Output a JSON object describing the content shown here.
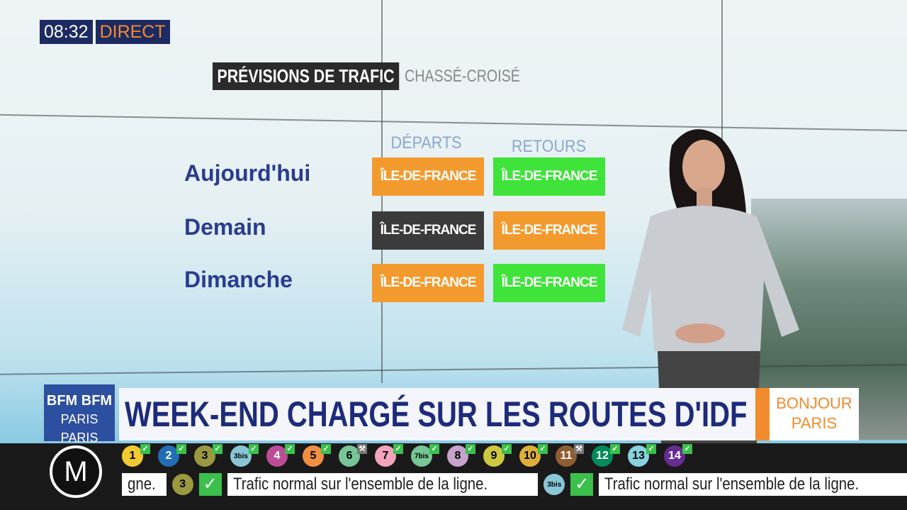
{
  "overlay": {
    "time": "08:32",
    "live": "DIRECT"
  },
  "board": {
    "title": "PRÉVISIONS DE TRAFIC",
    "subtitle": "CHASSÉ-CROISÉ",
    "columns": [
      "DÉPARTS",
      "RETOURS"
    ],
    "rows": [
      {
        "day": "Aujourd'hui",
        "departs": {
          "label": "ÎLE-DE-FRANCE",
          "color": "#f39a2e"
        },
        "retours": {
          "label": "ÎLE-DE-FRANCE",
          "color": "#3fe33a"
        }
      },
      {
        "day": "Demain",
        "departs": {
          "label": "ÎLE-DE-FRANCE",
          "color": "#3b3b3b"
        },
        "retours": {
          "label": "ÎLE-DE-FRANCE",
          "color": "#f39a2e"
        }
      },
      {
        "day": "Dimanche",
        "departs": {
          "label": "ÎLE-DE-FRANCE",
          "color": "#f39a2e"
        },
        "retours": {
          "label": "ÎLE-DE-FRANCE",
          "color": "#3fe33a"
        }
      }
    ]
  },
  "banner": {
    "channel_logo": "BFM PARIS",
    "headline": "WEEK-END CHARGÉ SUR LES ROUTES D'IDF",
    "show_logo": "BONJOUR PARIS"
  },
  "metro": {
    "logo": "M",
    "lines": [
      {
        "n": "1",
        "color": "#f2c931",
        "status": "ok"
      },
      {
        "n": "2",
        "color": "#216eb4",
        "status": "ok"
      },
      {
        "n": "3",
        "color": "#9a9940",
        "status": "ok"
      },
      {
        "n": "3bis",
        "color": "#89c7d6",
        "status": "ok"
      },
      {
        "n": "4",
        "color": "#bb4d98",
        "status": "ok"
      },
      {
        "n": "5",
        "color": "#f28e42",
        "status": "ok"
      },
      {
        "n": "6",
        "color": "#77c695",
        "status": "works"
      },
      {
        "n": "7",
        "color": "#f3a4ba",
        "status": "ok"
      },
      {
        "n": "7bis",
        "color": "#77c695",
        "status": "ok"
      },
      {
        "n": "8",
        "color": "#c5a3ca",
        "status": "ok"
      },
      {
        "n": "9",
        "color": "#cdc83f",
        "status": "ok"
      },
      {
        "n": "10",
        "color": "#dfb039",
        "status": "ok"
      },
      {
        "n": "11",
        "color": "#8e5e32",
        "status": "works"
      },
      {
        "n": "12",
        "color": "#008b5b",
        "status": "ok"
      },
      {
        "n": "13",
        "color": "#87d3df",
        "status": "ok"
      },
      {
        "n": "14",
        "color": "#662c91",
        "status": "ok"
      }
    ],
    "ticker": [
      {
        "text": "gne."
      },
      {
        "line": "3",
        "color": "#9a9940",
        "text": "Trafic normal sur l'ensemble de la ligne."
      },
      {
        "line": "3bis",
        "color": "#89c7d6",
        "text": "Trafic normal sur l'ensemble de la ligne."
      }
    ]
  }
}
